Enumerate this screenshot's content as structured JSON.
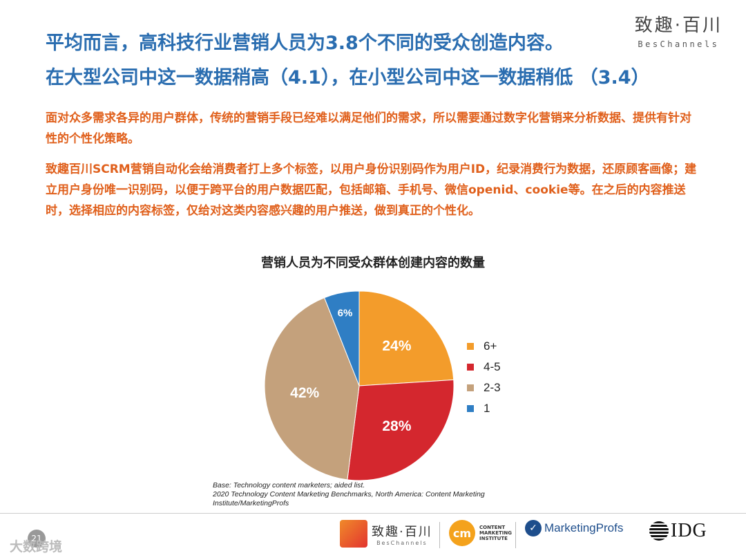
{
  "header": {
    "title_line1": "平均而言，高科技行业营销人员为3.8个不同的受众创造内容。",
    "title_line2": "在大型公司中这一数据稍高（4.1），在小型公司中这一数据稍低 （3.4）",
    "logo_cn": "致趣·百川",
    "logo_en": "BesChannels"
  },
  "body": {
    "para1": "面对众多需求各异的用户群体，传统的营销手段已经难以满足他们的需求，所以需要通过数字化营销来分析数据、提供有针对性的个性化策略。",
    "para2": "致趣百川SCRM营销自动化会给消费者打上多个标签，以用户身份识别码作为用户ID，纪录消费行为数据，还原顾客画像；建立用户身份唯一识别码，以便于跨平台的用户数据匹配，包括邮箱、手机号、微信openid、cookie等。在之后的内容推送时，选择相应的内容标签，仅给对这类内容感兴趣的用户推送，做到真正的个性化。"
  },
  "chart_data": {
    "type": "pie",
    "title": "营销人员为不同受众群体创建内容的数量",
    "slices": [
      {
        "label": "6+",
        "value": 24,
        "display": "24%",
        "color": "#f39c2b"
      },
      {
        "label": "4-5",
        "value": 28,
        "display": "28%",
        "color": "#d4272e"
      },
      {
        "label": "2-3",
        "value": 42,
        "display": "42%",
        "color": "#c4a17c"
      },
      {
        "label": "1",
        "value": 6,
        "display": "6%",
        "color": "#2f7ec4"
      }
    ],
    "legend_position": "right"
  },
  "source": {
    "line1": "Base: Technology content marketers; aided list.",
    "line2": "2020 Technology Content Marketing Benchmarks, North America: Content Marketing",
    "line3": "Institute/MarketingProfs"
  },
  "footer": {
    "page_number": "21",
    "logo1_cn": "致趣·百川",
    "logo1_en": "BesChannels",
    "logo2_mark": "cm",
    "logo2_text1": "CONTENT",
    "logo2_text2": "MARKETING",
    "logo2_text3": "INSTITUTE",
    "logo3_text": "MarketingProfs",
    "logo4_text": "IDG",
    "corner_text": "大数跨境"
  }
}
